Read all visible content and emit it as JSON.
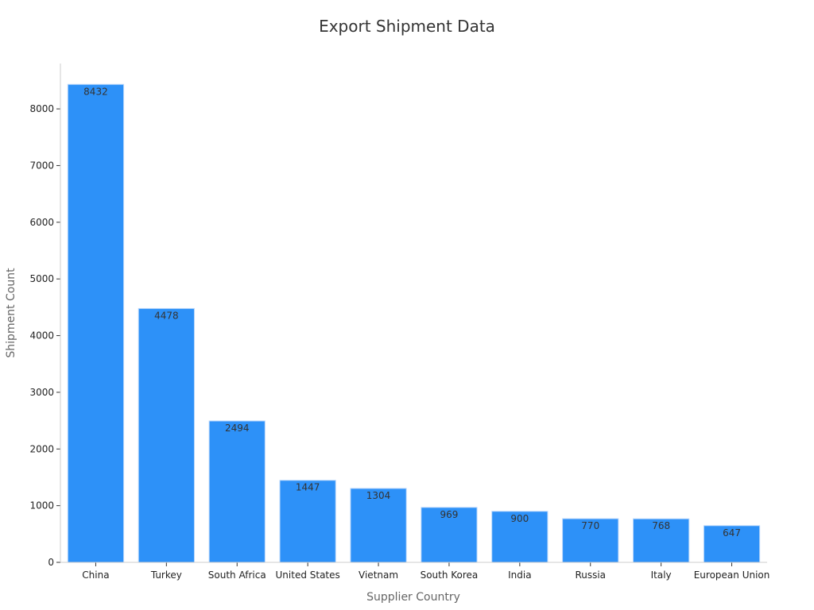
{
  "chart_data": {
    "type": "bar",
    "title": "Export Shipment Data",
    "xlabel": "Supplier Country",
    "ylabel": "Shipment Count",
    "categories": [
      "China",
      "Turkey",
      "South Africa",
      "United States",
      "Vietnam",
      "South Korea",
      "India",
      "Russia",
      "Italy",
      "European Union"
    ],
    "values": [
      8432,
      4478,
      2494,
      1447,
      1304,
      969,
      900,
      770,
      768,
      647
    ],
    "yticks": [
      0,
      1000,
      2000,
      3000,
      4000,
      5000,
      6000,
      7000,
      8000
    ],
    "ylim": [
      0,
      8800
    ],
    "grid": false,
    "legend": "none",
    "bar_color": "#2d91f8",
    "bar_edge_color": "#b8d6fb",
    "axis_color": "#cccccc",
    "data_labels_visible": true
  }
}
